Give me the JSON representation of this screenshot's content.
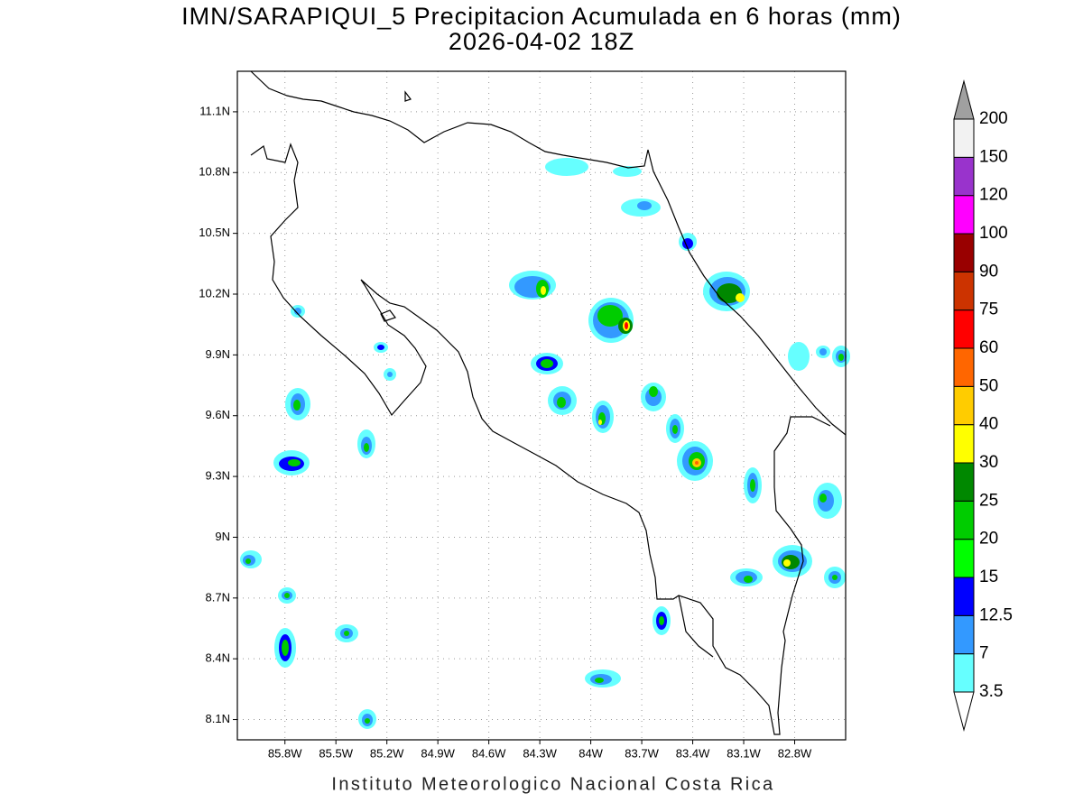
{
  "map": {
    "title": "IMN/SARAPIQUI_5 Precipitacion Acumulada en 6 horas (mm)",
    "subtitle": "2026-04-02 18Z",
    "footer": "Instituto Meteorologico Nacional Costa Rica",
    "xlim": [
      -86.08,
      -82.5
    ],
    "ylim": [
      8.0,
      11.3
    ],
    "xticks": [
      {
        "value": -85.8,
        "label": "85.8W"
      },
      {
        "value": -85.5,
        "label": "85.5W"
      },
      {
        "value": -85.2,
        "label": "85.2W"
      },
      {
        "value": -84.9,
        "label": "84.9W"
      },
      {
        "value": -84.6,
        "label": "84.6W"
      },
      {
        "value": -84.3,
        "label": "84.3W"
      },
      {
        "value": -84.0,
        "label": "84W"
      },
      {
        "value": -83.7,
        "label": "83.7W"
      },
      {
        "value": -83.4,
        "label": "83.4W"
      },
      {
        "value": -83.1,
        "label": "83.1W"
      },
      {
        "value": -82.8,
        "label": "82.8W"
      }
    ],
    "yticks": [
      {
        "value": 8.1,
        "label": "8.1N"
      },
      {
        "value": 8.4,
        "label": "8.4N"
      },
      {
        "value": 8.7,
        "label": "8.7N"
      },
      {
        "value": 9.0,
        "label": "9N"
      },
      {
        "value": 9.3,
        "label": "9.3N"
      },
      {
        "value": 9.6,
        "label": "9.6N"
      },
      {
        "value": 9.9,
        "label": "9.9N"
      },
      {
        "value": 10.2,
        "label": "10.2N"
      },
      {
        "value": 10.5,
        "label": "10.5N"
      },
      {
        "value": 10.8,
        "label": "10.8N"
      },
      {
        "value": 11.1,
        "label": "11.1N"
      }
    ],
    "grid": true,
    "colorbar": {
      "levels": [
        3.5,
        7,
        12.5,
        15,
        20,
        25,
        30,
        40,
        50,
        60,
        75,
        90,
        100,
        120,
        150,
        200
      ],
      "colors": [
        "#66ffff",
        "#3399ff",
        "#0000ff",
        "#00ff00",
        "#00cc00",
        "#008800",
        "#ffff00",
        "#ffcc00",
        "#ff6600",
        "#ff0000",
        "#cc3300",
        "#990000",
        "#ff00ff",
        "#9933cc",
        "#f2f2f2"
      ],
      "over_color": "#a0a0a0",
      "under_color": "#ffffff"
    }
  }
}
